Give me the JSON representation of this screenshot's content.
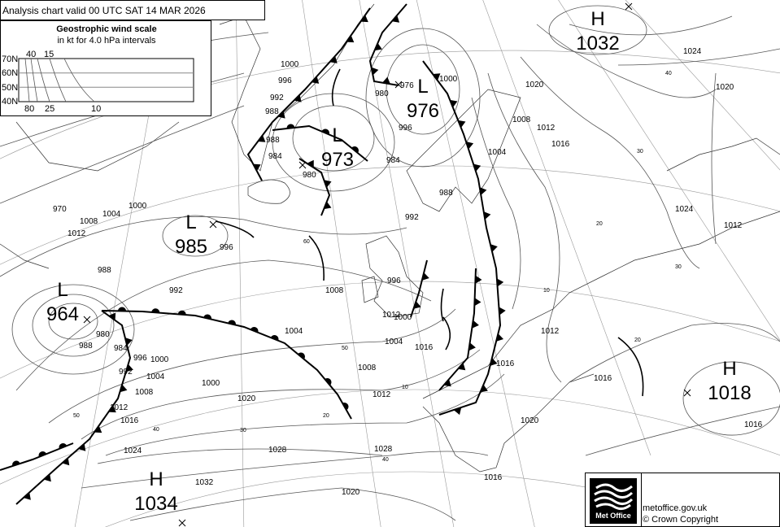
{
  "header": {
    "title": "Analysis chart  valid 00 UTC SAT 14  MAR 2026"
  },
  "wind_scale": {
    "title": "Geostrophic wind scale",
    "subtitle": "in kt for 4.0 hPa intervals",
    "latitudes": [
      "70N",
      "60N",
      "50N",
      "40N"
    ],
    "top_labels": [
      "40",
      "15"
    ],
    "bottom_labels": [
      "80",
      "25",
      "10"
    ]
  },
  "pressure_centres": [
    {
      "type": "H",
      "value": "1032"
    },
    {
      "type": "L",
      "value": "976"
    },
    {
      "type": "L",
      "value": "973"
    },
    {
      "type": "L",
      "value": "985"
    },
    {
      "type": "L",
      "value": "964"
    },
    {
      "type": "H",
      "value": "1034"
    },
    {
      "type": "H",
      "value": "1018"
    }
  ],
  "isobar_labels": [
    "1000",
    "996",
    "992",
    "988",
    "988",
    "984",
    "980",
    "976",
    "980",
    "984",
    "988",
    "992",
    "996",
    "1000",
    "1004",
    "1008",
    "1012",
    "1016",
    "1020",
    "1024",
    "1028",
    "1020",
    "1016",
    "1012",
    "1008",
    "1004",
    "1000",
    "996",
    "992",
    "988",
    "984",
    "980",
    "970",
    "1012",
    "1008",
    "1004",
    "1000",
    "996",
    "988",
    "992",
    "996",
    "1000",
    "1004",
    "1008",
    "1012",
    "1016",
    "1020",
    "1024",
    "1028",
    "1032",
    "1000",
    "1004",
    "1008",
    "1012",
    "1016",
    "1016",
    "1012",
    "1016",
    "1024",
    "1020",
    "1012",
    "1016",
    "1020"
  ],
  "latitude_labels": [
    "60",
    "50",
    "40",
    "30",
    "20",
    "10",
    "40",
    "50",
    "40",
    "30",
    "20",
    "10",
    "30",
    "20"
  ],
  "footer": {
    "logo_text": "Met Office",
    "website": "metoffice.gov.uk",
    "copyright": "© Crown Copyright"
  }
}
